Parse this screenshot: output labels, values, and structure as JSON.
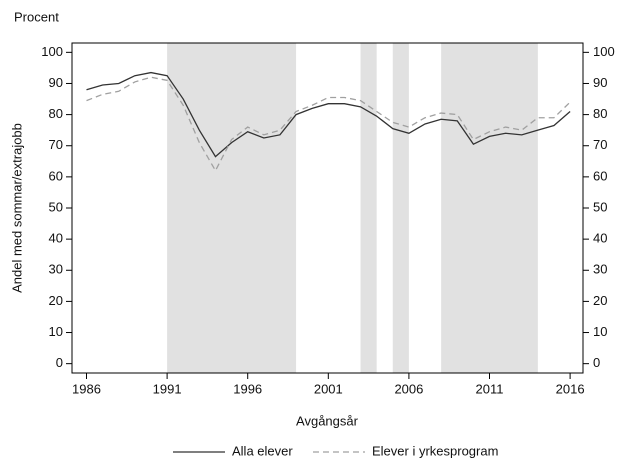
{
  "chart_data": {
    "type": "line",
    "title": "Procent",
    "y_label": "Andel med sommar/extrajobb",
    "x_label": "Avgångsår",
    "x": [
      1986,
      1987,
      1988,
      1989,
      1990,
      1991,
      1992,
      1993,
      1994,
      1995,
      1996,
      1997,
      1998,
      1999,
      2000,
      2001,
      2002,
      2003,
      2004,
      2005,
      2006,
      2007,
      2008,
      2009,
      2010,
      2011,
      2012,
      2013,
      2014,
      2015,
      2016
    ],
    "series": [
      {
        "name": "Alla elever",
        "color": "#333333",
        "dash": "none",
        "values": [
          88,
          89.5,
          90,
          92.5,
          93.5,
          92.5,
          85,
          75,
          66.5,
          71,
          74.5,
          72.5,
          73.5,
          80,
          82,
          83.5,
          83.5,
          82.5,
          79.5,
          75.5,
          74,
          77,
          78.5,
          78,
          70.5,
          73,
          74,
          73.5,
          75,
          76.5,
          81
        ]
      },
      {
        "name": "Elever i yrkesprogram",
        "color": "#a0a0a0",
        "dash": "6,4",
        "values": [
          84.5,
          86.5,
          87.5,
          90.5,
          92,
          91,
          83,
          71,
          62,
          72,
          76,
          73.5,
          75,
          81,
          83,
          85.5,
          85.5,
          84.5,
          81,
          77.5,
          76,
          79,
          80.5,
          80,
          72,
          74.5,
          76,
          75,
          79,
          79,
          84
        ]
      }
    ],
    "shaded_ranges": [
      [
        1991,
        1999
      ],
      [
        2003,
        2004
      ],
      [
        2005,
        2006
      ],
      [
        2008,
        2014
      ]
    ],
    "shade_color": "#e1e1e1",
    "xlim": [
      1985.1,
      2016.8
    ],
    "xticks": [
      1986,
      1991,
      1996,
      2001,
      2006,
      2011,
      2016
    ],
    "ylim": [
      -3,
      103
    ],
    "yticks": [
      0,
      10,
      20,
      30,
      40,
      50,
      60,
      70,
      80,
      90,
      100
    ],
    "y2lim": [
      -3,
      103
    ],
    "y2ticks": [
      0,
      10,
      20,
      30,
      40,
      50,
      60,
      70,
      80,
      90,
      100
    ],
    "grid": false
  }
}
